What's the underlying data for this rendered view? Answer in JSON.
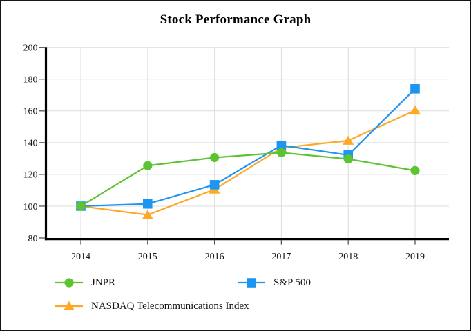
{
  "chart_data": {
    "type": "line",
    "title": "Stock Performance Graph",
    "x": [
      "2014",
      "2015",
      "2016",
      "2017",
      "2018",
      "2019"
    ],
    "xlabel": "",
    "ylabel": "",
    "ylim": [
      80,
      200
    ],
    "ytick_step": 20,
    "grid": true,
    "legend_position": "bottom-left",
    "colors": {
      "gridline": "#dcdcdc",
      "axis": "#000000",
      "tick": "#555555",
      "text": "#141414"
    },
    "series": [
      {
        "name": "JNPR",
        "marker": "circle",
        "color": "#5cc431",
        "values": [
          100,
          125.5,
          130.6,
          133.7,
          129.7,
          122.4
        ]
      },
      {
        "name": "S&P 500",
        "marker": "square",
        "color": "#1e96f0",
        "values": [
          100,
          101.4,
          113.5,
          138.3,
          132.2,
          173.9
        ]
      },
      {
        "name": "NASDAQ Telecommunications Index",
        "marker": "triangle",
        "color": "#ffa726",
        "values": [
          100,
          94.5,
          110.5,
          136.7,
          141.3,
          160.3
        ]
      }
    ]
  }
}
